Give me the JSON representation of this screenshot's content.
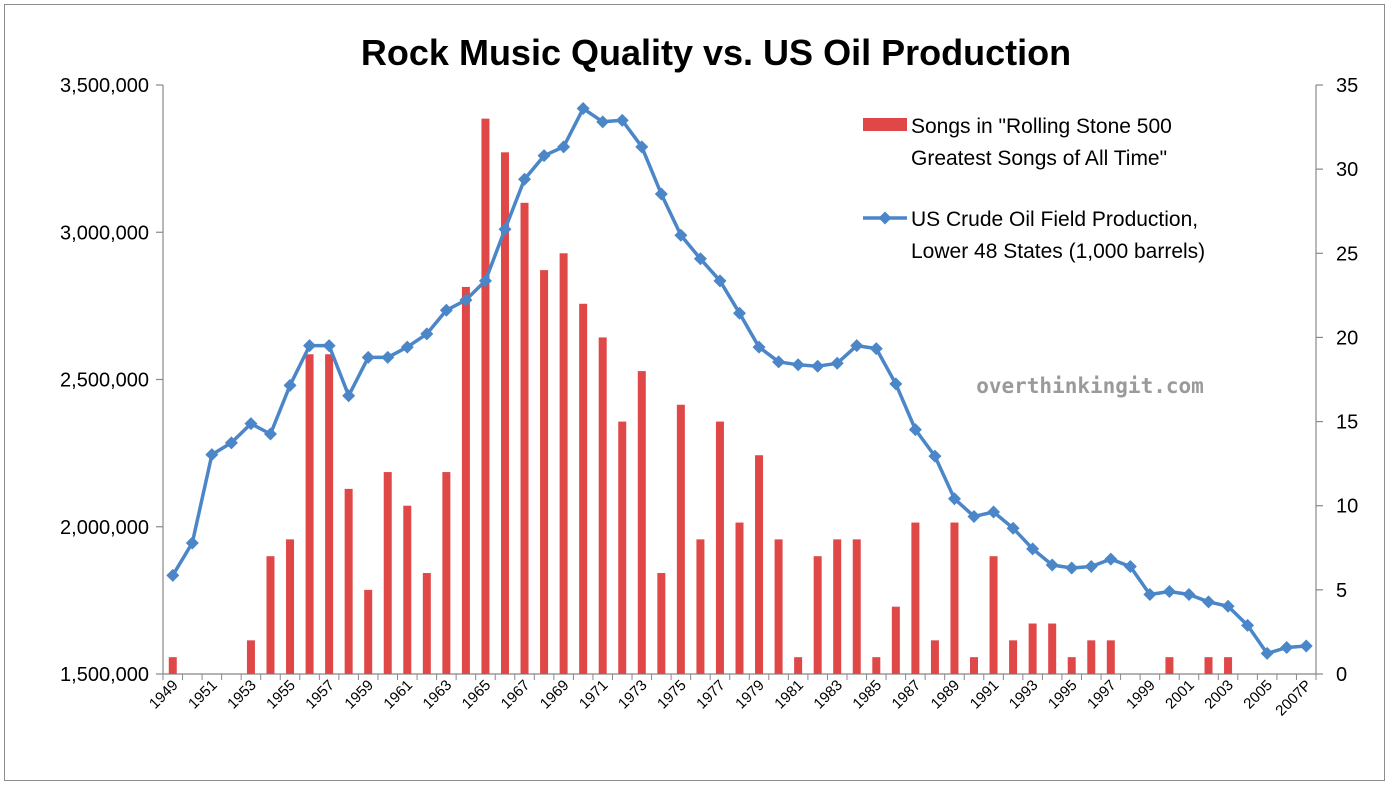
{
  "chart_data": {
    "type": "bar",
    "title": "Rock Music Quality vs. US Oil Production",
    "watermark": "overthinkingit.com",
    "categories": [
      "1949",
      "1950",
      "1951",
      "1952",
      "1953",
      "1954",
      "1955",
      "1956",
      "1957",
      "1958",
      "1959",
      "1960",
      "1961",
      "1962",
      "1963",
      "1964",
      "1965",
      "1966",
      "1967",
      "1968",
      "1969",
      "1970",
      "1971",
      "1972",
      "1973",
      "1974",
      "1975",
      "1976",
      "1977",
      "1978",
      "1979",
      "1980",
      "1981",
      "1982",
      "1983",
      "1984",
      "1985",
      "1986",
      "1987",
      "1988",
      "1989",
      "1990",
      "1991",
      "1992",
      "1993",
      "1994",
      "1995",
      "1996",
      "1997",
      "1998",
      "1999",
      "2000",
      "2001",
      "2002",
      "2003",
      "2004",
      "2005",
      "2006",
      "2007P"
    ],
    "x_tick_labels": [
      "1949",
      "1951",
      "1953",
      "1955",
      "1957",
      "1959",
      "1961",
      "1963",
      "1965",
      "1967",
      "1969",
      "1971",
      "1973",
      "1975",
      "1977",
      "1979",
      "1981",
      "1983",
      "1985",
      "1987",
      "1989",
      "1991",
      "1993",
      "1995",
      "1997",
      "1999",
      "2001",
      "2003",
      "2005",
      "2007P"
    ],
    "left_axis": {
      "ylim": [
        1500000,
        3500000
      ],
      "ticks": [
        "1,500,000",
        "2,000,000",
        "2,500,000",
        "3,000,000",
        "3,500,000"
      ]
    },
    "right_axis": {
      "ylim": [
        0,
        35
      ],
      "ticks": [
        "0",
        "5",
        "10",
        "15",
        "20",
        "25",
        "30",
        "35"
      ]
    },
    "legend_position": "top-right",
    "series": [
      {
        "name": "Songs in \"Rolling Stone 500 Greatest Songs of All Time\"",
        "name_lines": [
          "Songs in \"Rolling Stone 500",
          "Greatest Songs of All Time\""
        ],
        "type": "bar",
        "axis": "right",
        "color": "#e04848",
        "values": [
          1,
          0,
          0,
          0,
          2,
          7,
          8,
          19,
          19,
          11,
          5,
          12,
          10,
          6,
          12,
          23,
          33,
          31,
          28,
          24,
          25,
          22,
          20,
          15,
          18,
          6,
          16,
          8,
          15,
          9,
          13,
          8,
          1,
          7,
          8,
          8,
          1,
          4,
          9,
          2,
          9,
          1,
          7,
          2,
          3,
          3,
          1,
          2,
          2,
          0,
          0,
          1,
          0,
          1,
          1,
          0,
          0,
          0,
          0
        ]
      },
      {
        "name": "US Crude Oil Field Production, Lower 48 States (1,000 barrels)",
        "name_lines": [
          "US Crude Oil Field Production,",
          "Lower 48 States (1,000 barrels)"
        ],
        "type": "line",
        "axis": "left",
        "color": "#4a86c8",
        "values": [
          1835000,
          1945000,
          2245000,
          2285000,
          2350000,
          2315000,
          2480000,
          2615000,
          2615000,
          2445000,
          2575000,
          2575000,
          2610000,
          2655000,
          2735000,
          2770000,
          2835000,
          3010000,
          3180000,
          3260000,
          3290000,
          3420000,
          3375000,
          3380000,
          3290000,
          3130000,
          2990000,
          2910000,
          2835000,
          2725000,
          2610000,
          2560000,
          2550000,
          2545000,
          2555000,
          2615000,
          2605000,
          2485000,
          2330000,
          2240000,
          2095000,
          2035000,
          2050000,
          1995000,
          1925000,
          1870000,
          1860000,
          1865000,
          1890000,
          1865000,
          1770000,
          1780000,
          1770000,
          1745000,
          1730000,
          1665000,
          1570000,
          1590000,
          1595000
        ]
      }
    ]
  }
}
